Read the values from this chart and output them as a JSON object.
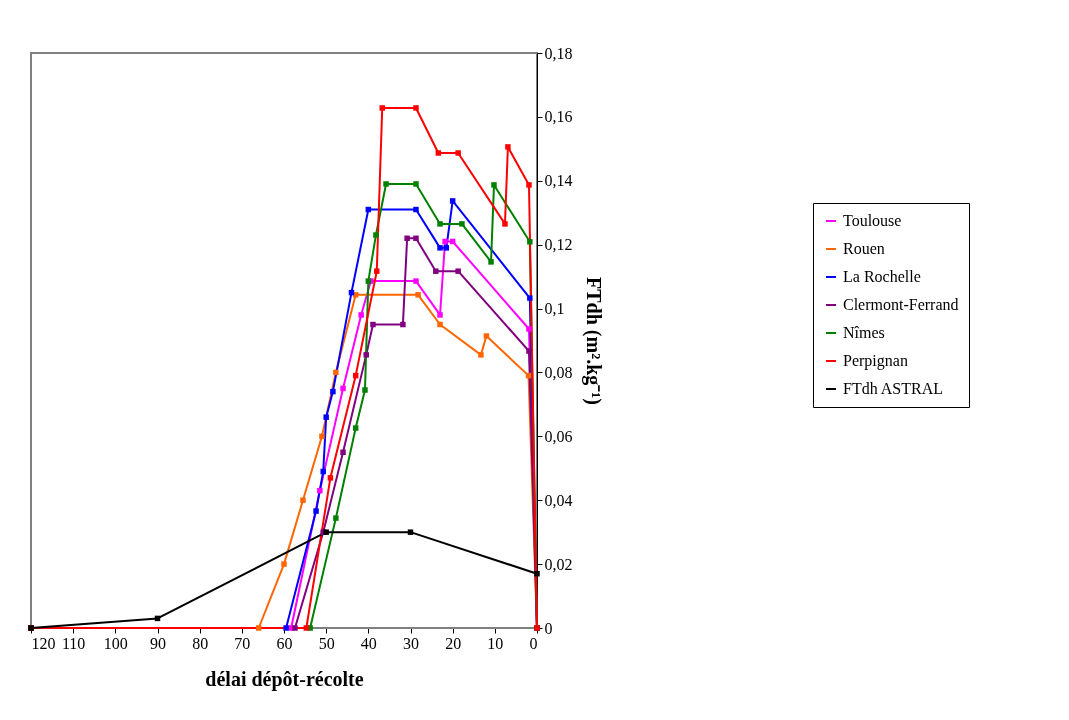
{
  "chart_data": {
    "type": "line",
    "xlabel": "délai dépôt-récolte",
    "ylabel": "FTdh (m².kg⁻¹)",
    "xlim": [
      120,
      0
    ],
    "xticks": [
      120,
      110,
      100,
      90,
      80,
      70,
      60,
      50,
      40,
      30,
      20,
      10,
      0
    ],
    "ylim": [
      0,
      0.18
    ],
    "yticks": [
      0,
      {
        "value": 0.02,
        "label": "0,02"
      },
      {
        "value": 0.04,
        "label": "0,04"
      },
      {
        "value": 0.06,
        "label": "0,06"
      },
      {
        "value": 0.08,
        "label": "0,08"
      },
      {
        "value": 0.1,
        "label": "0,1"
      },
      {
        "value": 0.12,
        "label": "0,12"
      },
      {
        "value": 0.14,
        "label": "0,14"
      },
      {
        "value": 0.16,
        "label": "0,16"
      },
      {
        "value": 0.18,
        "label": "0,18"
      }
    ],
    "grid": false,
    "legend": "right",
    "marker": "square",
    "line_style": "solid",
    "series": [
      {
        "name": "Toulouse",
        "color": "#ff00ff",
        "x": [
          120,
          58.3,
          51.5,
          46,
          41.7,
          39.4,
          28.7,
          23,
          21.8,
          20,
          1.9,
          0
        ],
        "values": [
          0,
          0,
          0.043,
          0.075,
          0.098,
          0.1086,
          0.1086,
          0.098,
          0.121,
          0.121,
          0.0936,
          0
        ]
      },
      {
        "name": "Rouen",
        "color": "#ff6600",
        "x": [
          120,
          66,
          60,
          55.5,
          51,
          47.7,
          43,
          28.2,
          23,
          13.3,
          12,
          2,
          0
        ],
        "values": [
          0,
          0,
          0.02,
          0.04,
          0.06,
          0.08,
          0.1043,
          0.1043,
          0.095,
          0.0855,
          0.0914,
          0.079,
          0
        ]
      },
      {
        "name": "La Rochelle",
        "color": "#0000ff",
        "x": [
          120,
          59.5,
          52.4,
          50.7,
          50,
          48.4,
          44,
          40,
          28.7,
          23,
          21.5,
          20,
          1.7,
          0
        ],
        "values": [
          0,
          0,
          0.0366,
          0.049,
          0.066,
          0.074,
          0.105,
          0.131,
          0.131,
          0.119,
          0.119,
          0.1337,
          0.1033,
          0
        ]
      },
      {
        "name": "Clermont-Ferrand",
        "color": "#800080",
        "x": [
          120,
          57.4,
          50.7,
          46,
          40.5,
          38.9,
          31.8,
          30.8,
          28.7,
          24,
          18.7,
          1.9,
          0
        ],
        "values": [
          0,
          0,
          0.03,
          0.055,
          0.0855,
          0.095,
          0.095,
          0.122,
          0.122,
          0.1117,
          0.1117,
          0.0867,
          0
        ]
      },
      {
        "name": "Nîmes",
        "color": "#008000",
        "x": [
          120,
          53.8,
          47.7,
          43,
          40.8,
          40,
          38.2,
          35.8,
          28.7,
          23,
          17.8,
          10.9,
          10.2,
          1.7,
          0
        ],
        "values": [
          0,
          0,
          0.0344,
          0.0626,
          0.0745,
          0.1086,
          0.123,
          0.139,
          0.139,
          0.1265,
          0.1265,
          0.1146,
          0.1387,
          0.1209,
          0
        ]
      },
      {
        "name": "Perpignan",
        "color": "#ff0000",
        "x": [
          120,
          54.7,
          49,
          43,
          38,
          36.7,
          28.7,
          23.4,
          18.7,
          7.6,
          6.9,
          1.9,
          0
        ],
        "values": [
          0,
          0,
          0.047,
          0.079,
          0.1117,
          0.1628,
          0.1628,
          0.1487,
          0.1487,
          0.1265,
          0.1506,
          0.1387,
          0
        ]
      },
      {
        "name": "FTdh ASTRAL",
        "color": "#000000",
        "x": [
          120,
          90,
          50,
          30,
          0
        ],
        "values": [
          0,
          0.003,
          0.03,
          0.03,
          0.017
        ]
      }
    ]
  }
}
